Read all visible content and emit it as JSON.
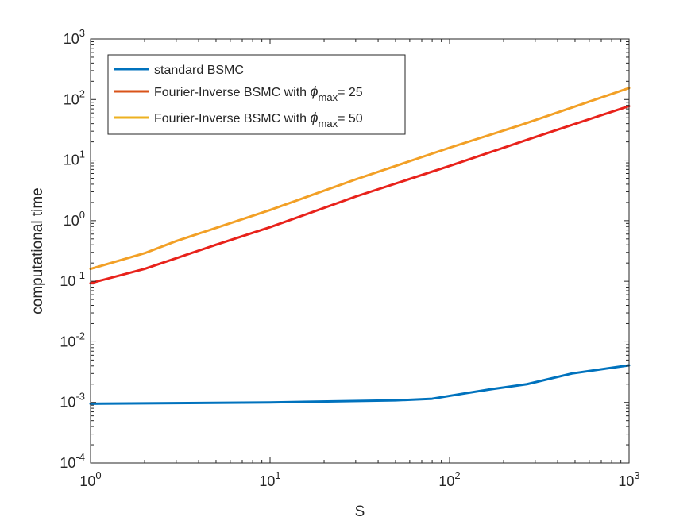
{
  "chart_data": {
    "type": "line",
    "xlabel": "S",
    "ylabel": "computational time",
    "xscale": "log",
    "yscale": "log",
    "xlim": [
      1,
      1000
    ],
    "ylim": [
      0.0001,
      1000
    ],
    "grid": false,
    "legend_placement": "top-left",
    "x_tick_labels": [
      {
        "base": "10",
        "exp": "0"
      },
      {
        "base": "10",
        "exp": "1"
      },
      {
        "base": "10",
        "exp": "2"
      },
      {
        "base": "10",
        "exp": "3"
      }
    ],
    "y_tick_labels": [
      {
        "base": "10",
        "exp": "-4"
      },
      {
        "base": "10",
        "exp": "-3"
      },
      {
        "base": "10",
        "exp": "-2"
      },
      {
        "base": "10",
        "exp": "-1"
      },
      {
        "base": "10",
        "exp": "0"
      },
      {
        "base": "10",
        "exp": "1"
      },
      {
        "base": "10",
        "exp": "2"
      },
      {
        "base": "10",
        "exp": "3"
      }
    ],
    "series": [
      {
        "legend": {
          "text": "standard BSMC",
          "symbol": "",
          "sub": "",
          "suffix": ""
        },
        "color": "#0072BD",
        "points": [
          [
            1,
            0.00095
          ],
          [
            10,
            0.001
          ],
          [
            50,
            0.00108
          ],
          [
            80,
            0.00115
          ],
          [
            120,
            0.0014
          ],
          [
            170,
            0.00165
          ],
          [
            270,
            0.002
          ],
          [
            480,
            0.003
          ],
          [
            1000,
            0.0041
          ]
        ]
      },
      {
        "legend": {
          "text": "Fourier-Inverse BSMC with ",
          "symbol": "ϕ",
          "sub": "max",
          "suffix": "= 25"
        },
        "color": "#D95319",
        "line_color": "#E8221B",
        "points": [
          [
            1,
            0.093
          ],
          [
            2,
            0.16
          ],
          [
            5,
            0.4
          ],
          [
            10,
            0.78
          ],
          [
            30,
            2.5
          ],
          [
            100,
            8
          ],
          [
            300,
            24
          ],
          [
            1000,
            78
          ]
        ]
      },
      {
        "legend": {
          "text": "Fourier-Inverse BSMC with ",
          "symbol": "ϕ",
          "sub": "max",
          "suffix": "= 50"
        },
        "color": "#EDB120",
        "line_color": "#F2A026",
        "points": [
          [
            1,
            0.16
          ],
          [
            2,
            0.29
          ],
          [
            3,
            0.46
          ],
          [
            10,
            1.5
          ],
          [
            30,
            4.8
          ],
          [
            100,
            16
          ],
          [
            250,
            38
          ],
          [
            1000,
            155
          ]
        ]
      }
    ]
  }
}
